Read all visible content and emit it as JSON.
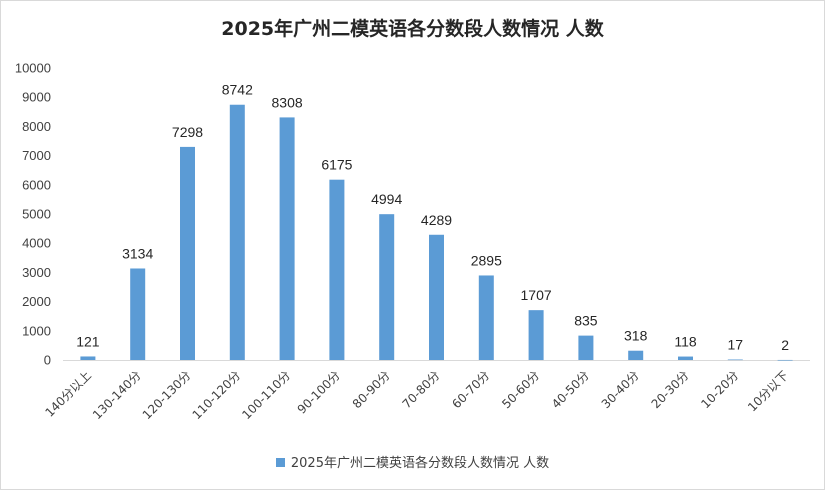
{
  "chart_data": {
    "type": "bar",
    "title": "2025年广州二模英语各分数段人数情况 人数",
    "categories": [
      "140分以上",
      "130-140分",
      "120-130分",
      "110-120分",
      "100-110分",
      "90-100分",
      "80-90分",
      "70-80分",
      "60-70分",
      "50-60分",
      "40-50分",
      "30-40分",
      "20-30分",
      "10-20分",
      "10分以下"
    ],
    "series": [
      {
        "name": "2025年广州二模英语各分数段人数情况 人数",
        "values": [
          121,
          3134,
          7298,
          8742,
          8308,
          6175,
          4994,
          4289,
          2895,
          1707,
          835,
          318,
          118,
          17,
          2
        ]
      }
    ],
    "ylim": [
      0,
      10000
    ],
    "yticks": [
      0,
      1000,
      2000,
      3000,
      4000,
      5000,
      6000,
      7000,
      8000,
      9000,
      10000
    ],
    "xlabel": "",
    "ylabel": "",
    "grid": false,
    "legend_position": "bottom",
    "bar_color": "#5b9bd5"
  }
}
